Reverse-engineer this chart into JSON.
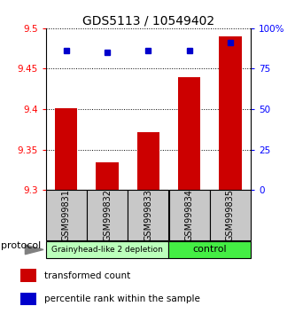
{
  "title": "GDS5113 / 10549402",
  "samples": [
    "GSM999831",
    "GSM999832",
    "GSM999833",
    "GSM999834",
    "GSM999835"
  ],
  "red_values": [
    9.401,
    9.334,
    9.371,
    9.44,
    9.49
  ],
  "blue_values": [
    86,
    85,
    86,
    86,
    91
  ],
  "ylim_left": [
    9.3,
    9.5
  ],
  "ylim_right": [
    0,
    100
  ],
  "left_ticks": [
    9.3,
    9.35,
    9.4,
    9.45,
    9.5
  ],
  "right_ticks": [
    0,
    25,
    50,
    75,
    100
  ],
  "right_tick_labels": [
    "0",
    "25",
    "50",
    "75",
    "100%"
  ],
  "protocol_groups": [
    {
      "label": "Grainyhead-like 2 depletion",
      "samples": [
        0,
        1,
        2
      ],
      "color": "#bbffbb"
    },
    {
      "label": "control",
      "samples": [
        3,
        4
      ],
      "color": "#44ee44"
    }
  ],
  "protocol_label": "protocol",
  "bar_color": "#cc0000",
  "dot_color": "#0000cc",
  "legend_items": [
    {
      "color": "#cc0000",
      "label": "transformed count"
    },
    {
      "color": "#0000cc",
      "label": "percentile rank within the sample"
    }
  ],
  "background_color": "#ffffff",
  "plot_bg": "#ffffff",
  "gray_box_color": "#c8c8c8",
  "bar_width": 0.55
}
